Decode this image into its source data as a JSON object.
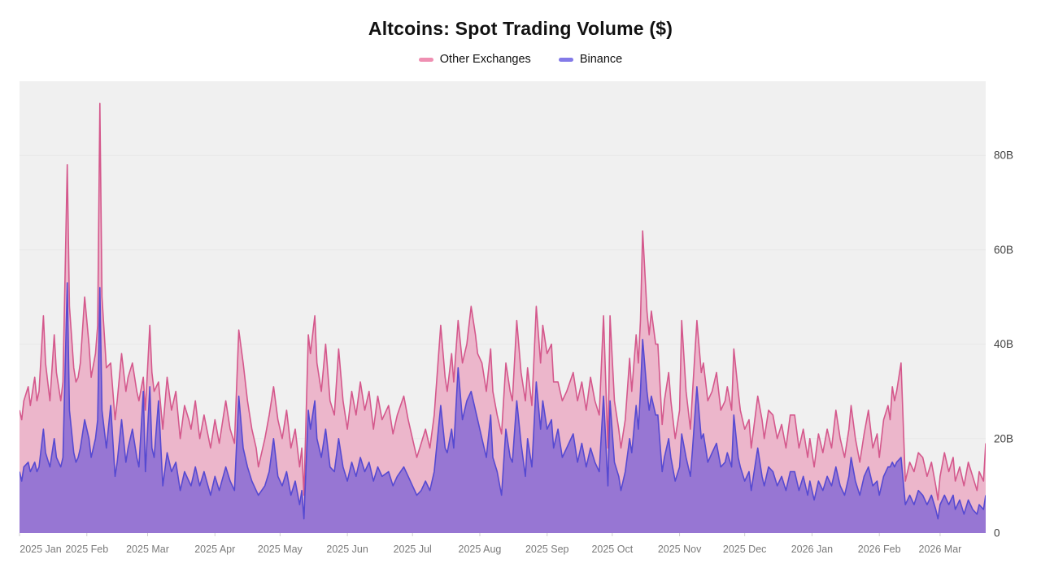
{
  "header": {
    "title": "Altcoins: Spot Trading Volume ($)"
  },
  "legend": [
    {
      "label": "Other Exchanges",
      "swatch_color": "#ef8fb2"
    },
    {
      "label": "Binance",
      "swatch_color": "#837ae8"
    }
  ],
  "chart_data": {
    "type": "area",
    "title": "Altcoins: Spot Trading Volume ($)",
    "x_unit": "days since 2025-01-01 (daily data)",
    "x_range": [
      0,
      445
    ],
    "y_unit": "USD billions",
    "ylim": [
      0,
      95.7
    ],
    "grid": "horizontal",
    "legend_position": "top",
    "plot_bg": "#f0f0f0",
    "grid_color": "#e7e7e7",
    "tick_mark_color": "#cfcfcf",
    "x_label_color": "#7a7a7a",
    "y_label_color": "#3f3f3f",
    "y_ticks": [
      {
        "value": 0,
        "label": "0"
      },
      {
        "value": 20,
        "label": "20B"
      },
      {
        "value": 40,
        "label": "40B"
      },
      {
        "value": 60,
        "label": "60B"
      },
      {
        "value": 80,
        "label": "80B"
      }
    ],
    "x_ticks": [
      {
        "day": 0,
        "label": "2025 Jan"
      },
      {
        "day": 31,
        "label": "2025 Feb"
      },
      {
        "day": 59,
        "label": "2025 Mar"
      },
      {
        "day": 90,
        "label": "2025 Apr"
      },
      {
        "day": 120,
        "label": "2025 May"
      },
      {
        "day": 151,
        "label": "2025 Jun"
      },
      {
        "day": 181,
        "label": "2025 Jul"
      },
      {
        "day": 212,
        "label": "2025 Aug"
      },
      {
        "day": 243,
        "label": "2025 Sep"
      },
      {
        "day": 273,
        "label": "2025 Oct"
      },
      {
        "day": 304,
        "label": "2025 Nov"
      },
      {
        "day": 334,
        "label": "2025 Dec"
      },
      {
        "day": 365,
        "label": "2026 Jan"
      },
      {
        "day": 396,
        "label": "2026 Feb"
      },
      {
        "day": 424,
        "label": "2026 Mar"
      }
    ],
    "series": [
      {
        "name": "Other Exchanges",
        "line_color": "#d4588c",
        "fill_color": "#ecb6cb",
        "column": 1
      },
      {
        "name": "Binance",
        "line_color": "#5649d1",
        "fill_color": "#9776d3",
        "column": 2
      }
    ],
    "points": [
      [
        0,
        26,
        13
      ],
      [
        1,
        24,
        11
      ],
      [
        2,
        28,
        14
      ],
      [
        4,
        31,
        15
      ],
      [
        5,
        27,
        13
      ],
      [
        7,
        33,
        15
      ],
      [
        8,
        28,
        13
      ],
      [
        9,
        30,
        14
      ],
      [
        11,
        46,
        22
      ],
      [
        12,
        36,
        17
      ],
      [
        14,
        28,
        14
      ],
      [
        16,
        42,
        20
      ],
      [
        17,
        34,
        16
      ],
      [
        19,
        28,
        14
      ],
      [
        20,
        32,
        16
      ],
      [
        22,
        78,
        53
      ],
      [
        23,
        48,
        26
      ],
      [
        25,
        35,
        17
      ],
      [
        26,
        32,
        15
      ],
      [
        27,
        33,
        16
      ],
      [
        28,
        36,
        18
      ],
      [
        30,
        50,
        24
      ],
      [
        32,
        40,
        20
      ],
      [
        33,
        33,
        16
      ],
      [
        35,
        38,
        20
      ],
      [
        36,
        44,
        24
      ],
      [
        37,
        91,
        52
      ],
      [
        38,
        50,
        26
      ],
      [
        40,
        35,
        18
      ],
      [
        42,
        36,
        27
      ],
      [
        44,
        24,
        12
      ],
      [
        45,
        28,
        15
      ],
      [
        47,
        38,
        24
      ],
      [
        49,
        30,
        15
      ],
      [
        50,
        33,
        18
      ],
      [
        52,
        36,
        22
      ],
      [
        54,
        30,
        16
      ],
      [
        55,
        28,
        14
      ],
      [
        57,
        33,
        30
      ],
      [
        58,
        26,
        13
      ],
      [
        60,
        44,
        31
      ],
      [
        61,
        34,
        18
      ],
      [
        62,
        30,
        16
      ],
      [
        64,
        32,
        28
      ],
      [
        66,
        22,
        10
      ],
      [
        68,
        33,
        17
      ],
      [
        70,
        26,
        13
      ],
      [
        72,
        30,
        15
      ],
      [
        74,
        20,
        9
      ],
      [
        76,
        27,
        13
      ],
      [
        78,
        24,
        11
      ],
      [
        79,
        22,
        10
      ],
      [
        81,
        28,
        14
      ],
      [
        83,
        20,
        10
      ],
      [
        85,
        25,
        13
      ],
      [
        88,
        18,
        8
      ],
      [
        90,
        24,
        12
      ],
      [
        92,
        19,
        9
      ],
      [
        95,
        28,
        14
      ],
      [
        97,
        22,
        11
      ],
      [
        99,
        19,
        9
      ],
      [
        101,
        43,
        29
      ],
      [
        103,
        36,
        18
      ],
      [
        105,
        28,
        14
      ],
      [
        107,
        22,
        11
      ],
      [
        109,
        18,
        9
      ],
      [
        110,
        14,
        8
      ],
      [
        113,
        20,
        10
      ],
      [
        115,
        25,
        13
      ],
      [
        117,
        31,
        20
      ],
      [
        119,
        24,
        12
      ],
      [
        121,
        20,
        10
      ],
      [
        123,
        26,
        13
      ],
      [
        125,
        18,
        8
      ],
      [
        127,
        22,
        11
      ],
      [
        129,
        14,
        6
      ],
      [
        130,
        18,
        9
      ],
      [
        131,
        8,
        3
      ],
      [
        133,
        42,
        26
      ],
      [
        134,
        38,
        22
      ],
      [
        136,
        46,
        28
      ],
      [
        137,
        36,
        20
      ],
      [
        139,
        30,
        16
      ],
      [
        141,
        40,
        22
      ],
      [
        143,
        28,
        14
      ],
      [
        145,
        25,
        13
      ],
      [
        147,
        39,
        20
      ],
      [
        149,
        28,
        14
      ],
      [
        151,
        22,
        11
      ],
      [
        153,
        30,
        15
      ],
      [
        155,
        25,
        12
      ],
      [
        157,
        32,
        16
      ],
      [
        159,
        26,
        13
      ],
      [
        161,
        30,
        15
      ],
      [
        163,
        22,
        11
      ],
      [
        165,
        29,
        14
      ],
      [
        167,
        24,
        12
      ],
      [
        170,
        27,
        13
      ],
      [
        172,
        21,
        10
      ],
      [
        174,
        25,
        12
      ],
      [
        177,
        29,
        14
      ],
      [
        179,
        24,
        12
      ],
      [
        181,
        20,
        10
      ],
      [
        183,
        16,
        8
      ],
      [
        185,
        19,
        9
      ],
      [
        187,
        22,
        11
      ],
      [
        189,
        18,
        9
      ],
      [
        191,
        25,
        13
      ],
      [
        194,
        44,
        27
      ],
      [
        196,
        33,
        18
      ],
      [
        197,
        30,
        17
      ],
      [
        199,
        38,
        22
      ],
      [
        200,
        32,
        18
      ],
      [
        202,
        45,
        35
      ],
      [
        204,
        36,
        24
      ],
      [
        206,
        40,
        28
      ],
      [
        208,
        48,
        30
      ],
      [
        210,
        42,
        26
      ],
      [
        211,
        38,
        24
      ],
      [
        213,
        36,
        20
      ],
      [
        215,
        30,
        16
      ],
      [
        217,
        39,
        25
      ],
      [
        218,
        30,
        16
      ],
      [
        220,
        25,
        13
      ],
      [
        222,
        21,
        8
      ],
      [
        224,
        36,
        22
      ],
      [
        226,
        30,
        16
      ],
      [
        227,
        28,
        15
      ],
      [
        229,
        45,
        28
      ],
      [
        231,
        34,
        19
      ],
      [
        233,
        28,
        12
      ],
      [
        234,
        35,
        20
      ],
      [
        236,
        27,
        14
      ],
      [
        238,
        48,
        32
      ],
      [
        240,
        36,
        22
      ],
      [
        241,
        44,
        28
      ],
      [
        243,
        38,
        22
      ],
      [
        245,
        40,
        24
      ],
      [
        246,
        32,
        18
      ],
      [
        248,
        32,
        22
      ],
      [
        250,
        28,
        16
      ],
      [
        252,
        30,
        18
      ],
      [
        255,
        34,
        21
      ],
      [
        257,
        28,
        15
      ],
      [
        259,
        32,
        19
      ],
      [
        261,
        26,
        14
      ],
      [
        263,
        33,
        18
      ],
      [
        265,
        28,
        15
      ],
      [
        267,
        25,
        13
      ],
      [
        269,
        46,
        29
      ],
      [
        271,
        18,
        10
      ],
      [
        272,
        46,
        28
      ],
      [
        274,
        28,
        15
      ],
      [
        276,
        22,
        12
      ],
      [
        277,
        18,
        9
      ],
      [
        279,
        24,
        13
      ],
      [
        281,
        37,
        20
      ],
      [
        282,
        30,
        17
      ],
      [
        284,
        42,
        27
      ],
      [
        285,
        36,
        22
      ],
      [
        286,
        45,
        30
      ],
      [
        287,
        64,
        41
      ],
      [
        289,
        47,
        30
      ],
      [
        290,
        42,
        26
      ],
      [
        291,
        47,
        29
      ],
      [
        293,
        40,
        25
      ],
      [
        294,
        40,
        25
      ],
      [
        296,
        23,
        13
      ],
      [
        297,
        28,
        16
      ],
      [
        299,
        34,
        20
      ],
      [
        300,
        28,
        16
      ],
      [
        302,
        20,
        11
      ],
      [
        304,
        26,
        14
      ],
      [
        305,
        45,
        21
      ],
      [
        307,
        30,
        16
      ],
      [
        309,
        22,
        12
      ],
      [
        310,
        30,
        18
      ],
      [
        312,
        45,
        31
      ],
      [
        314,
        34,
        20
      ],
      [
        315,
        36,
        21
      ],
      [
        317,
        28,
        15
      ],
      [
        319,
        30,
        17
      ],
      [
        321,
        34,
        19
      ],
      [
        323,
        26,
        14
      ],
      [
        325,
        28,
        15
      ],
      [
        326,
        31,
        17
      ],
      [
        328,
        26,
        14
      ],
      [
        329,
        39,
        25
      ],
      [
        331,
        30,
        16
      ],
      [
        332,
        26,
        14
      ],
      [
        334,
        22,
        11
      ],
      [
        336,
        24,
        13
      ],
      [
        337,
        18,
        9
      ],
      [
        340,
        29,
        18
      ],
      [
        342,
        24,
        12
      ],
      [
        343,
        20,
        10
      ],
      [
        345,
        26,
        14
      ],
      [
        347,
        25,
        13
      ],
      [
        349,
        20,
        10
      ],
      [
        351,
        23,
        12
      ],
      [
        353,
        18,
        9
      ],
      [
        355,
        25,
        13
      ],
      [
        357,
        25,
        13
      ],
      [
        359,
        18,
        9
      ],
      [
        361,
        22,
        12
      ],
      [
        363,
        16,
        8
      ],
      [
        364,
        20,
        11
      ],
      [
        366,
        14,
        7
      ],
      [
        368,
        21,
        11
      ],
      [
        370,
        17,
        9
      ],
      [
        372,
        22,
        12
      ],
      [
        374,
        18,
        10
      ],
      [
        376,
        26,
        14
      ],
      [
        378,
        20,
        10
      ],
      [
        380,
        16,
        8
      ],
      [
        382,
        22,
        12
      ],
      [
        383,
        27,
        16
      ],
      [
        385,
        20,
        11
      ],
      [
        387,
        15,
        8
      ],
      [
        389,
        21,
        12
      ],
      [
        391,
        26,
        14
      ],
      [
        393,
        18,
        10
      ],
      [
        395,
        21,
        11
      ],
      [
        396,
        16,
        8
      ],
      [
        398,
        24,
        12
      ],
      [
        400,
        27,
        14
      ],
      [
        401,
        24,
        14
      ],
      [
        402,
        31,
        15
      ],
      [
        403,
        28,
        14
      ],
      [
        404,
        30,
        15
      ],
      [
        406,
        36,
        16
      ],
      [
        408,
        11,
        6
      ],
      [
        410,
        15,
        8
      ],
      [
        412,
        13,
        6
      ],
      [
        414,
        17,
        9
      ],
      [
        416,
        16,
        8
      ],
      [
        418,
        12,
        6
      ],
      [
        420,
        15,
        8
      ],
      [
        422,
        10,
        5
      ],
      [
        423,
        7,
        3
      ],
      [
        424,
        12,
        6
      ],
      [
        426,
        17,
        8
      ],
      [
        428,
        13,
        6
      ],
      [
        430,
        16,
        8
      ],
      [
        431,
        11,
        5
      ],
      [
        433,
        14,
        7
      ],
      [
        435,
        10,
        4
      ],
      [
        437,
        15,
        7
      ],
      [
        439,
        12,
        5
      ],
      [
        441,
        9,
        4
      ],
      [
        442,
        13,
        6
      ],
      [
        444,
        11,
        5
      ],
      [
        445,
        19,
        8
      ]
    ]
  }
}
